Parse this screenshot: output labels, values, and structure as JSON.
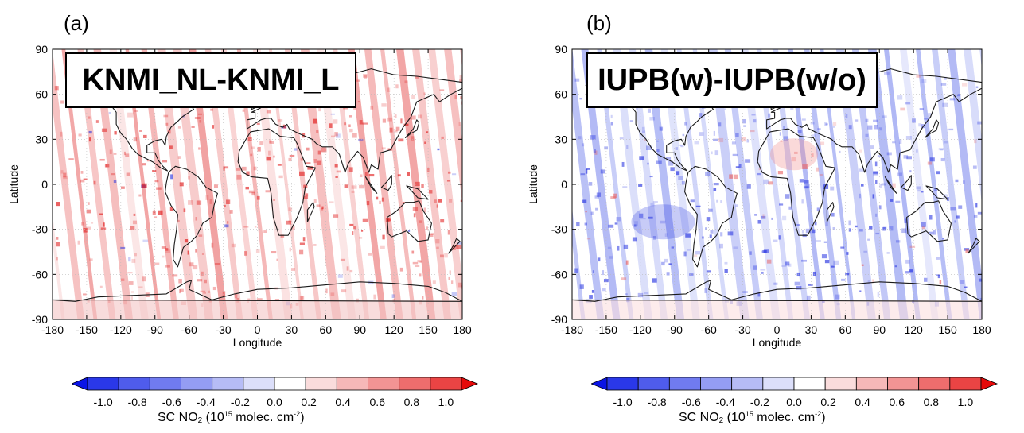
{
  "panels": [
    {
      "letter": "(a)",
      "title": "KNMI_NL-KNMI_L",
      "pattern": "positive",
      "xlabel": "Longitude",
      "ylabel": "Latitude",
      "xticks": [
        "-180",
        "-150",
        "-120",
        "-90",
        "-60",
        "-30",
        "0",
        "30",
        "60",
        "90",
        "120",
        "150",
        "180"
      ],
      "yticks": [
        "90",
        "60",
        "30",
        "0",
        "-30",
        "-60",
        "-90"
      ],
      "colorbar_ticks": [
        "-1.0",
        "-0.8",
        "-0.6",
        "-0.4",
        "-0.2",
        "0.0",
        "0.2",
        "0.4",
        "0.6",
        "0.8",
        "1.0"
      ],
      "colorbar_label": {
        "prefix": "SC NO",
        "sub": "2",
        "mid": " (10",
        "sup1": "15",
        "mid2": " molec. cm",
        "sup2": "-2",
        "suffix": ")"
      }
    },
    {
      "letter": "(b)",
      "title": "IUPB(w)-IUPB(w/o)",
      "pattern": "negative",
      "xlabel": "Longitude",
      "ylabel": "Latitude",
      "xticks": [
        "-180",
        "-150",
        "-120",
        "-90",
        "-60",
        "-30",
        "0",
        "30",
        "60",
        "90",
        "120",
        "150",
        "180"
      ],
      "yticks": [
        "90",
        "60",
        "30",
        "0",
        "-30",
        "-60",
        "-90"
      ],
      "colorbar_ticks": [
        "-1.0",
        "-0.8",
        "-0.6",
        "-0.4",
        "-0.2",
        "0.0",
        "0.2",
        "0.4",
        "0.6",
        "0.8",
        "1.0"
      ],
      "colorbar_label": {
        "prefix": "SC NO",
        "sub": "2",
        "mid": " (10",
        "sup1": "15",
        "mid2": " molec. cm",
        "sup2": "-2",
        "suffix": ")"
      }
    }
  ],
  "map": {
    "lon_range": [
      -180,
      180
    ],
    "lat_range": [
      -90,
      90
    ],
    "colorbar_range": [
      -1.0,
      1.0
    ],
    "colorbar_colors": [
      "#0a14e6",
      "#3c48ef",
      "#6470f2",
      "#8c96f5",
      "#b4baf8",
      "#d8dcfb",
      "#ffffff",
      "#fbd6d6",
      "#f7b0b0",
      "#f28c8c",
      "#ee6464",
      "#ea3c3c",
      "#e60a0a"
    ]
  }
}
